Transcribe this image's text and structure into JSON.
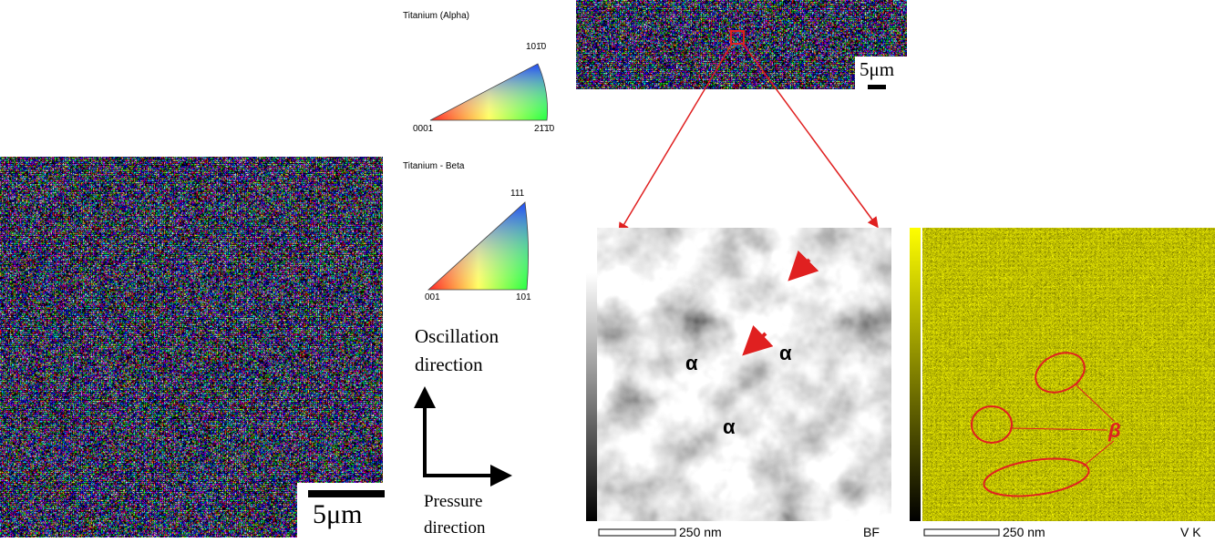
{
  "figure": {
    "ipf_alpha": {
      "title": "Titanium (Alpha)",
      "top": "101̄0",
      "left": "0001",
      "right": "21̄1̄0"
    },
    "ipf_beta": {
      "title": "Titanium - Beta",
      "top": "111",
      "left": "001",
      "right": "101"
    },
    "directions": {
      "oscillation": "Oscillation direction",
      "pressure": "Pressure direction"
    },
    "ebsd_map": {
      "scale": "5μm"
    },
    "ebsd_strip": {
      "scale": "5μm"
    },
    "tem_bf": {
      "labels": [
        "α",
        "α",
        "α"
      ],
      "scale": "250 nm",
      "mode": "BF"
    },
    "eds_map": {
      "scale": "250 nm",
      "element": "V K",
      "label": "β"
    }
  }
}
